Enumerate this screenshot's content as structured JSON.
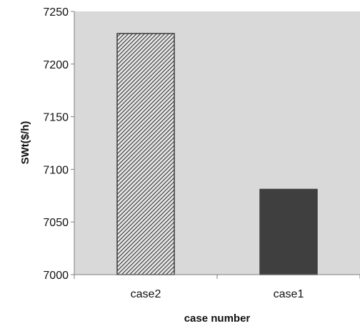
{
  "chart_data": {
    "type": "bar",
    "title": "",
    "xlabel": "case number",
    "ylabel": "SWt($/h)",
    "categories": [
      "case2",
      "case1"
    ],
    "values": [
      7229,
      7081
    ],
    "ylim": [
      7000,
      7250
    ],
    "yticks": [
      "7000",
      "7050",
      "7100",
      "7150",
      "7200",
      "7250"
    ],
    "grid": false,
    "legend": "none",
    "plot_background": "#d9d9d9",
    "bar_fills": [
      "hatched",
      "#3f3f3f"
    ],
    "bar_colors": [
      "#3a3a3a",
      "#3f3f3f"
    ]
  }
}
